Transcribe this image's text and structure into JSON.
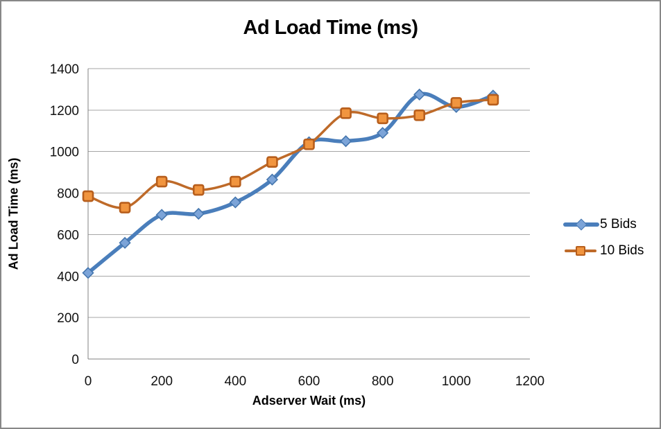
{
  "window": {
    "background": "#ffffff",
    "border_color": "#878787"
  },
  "chart_data": {
    "type": "line",
    "title": "Ad Load Time (ms)",
    "xlabel": "Adserver Wait (ms)",
    "ylabel": "Ad Load Time (ms)",
    "xlim": [
      0,
      1200
    ],
    "ylim": [
      0,
      1400
    ],
    "x_ticks": [
      0,
      200,
      400,
      600,
      800,
      1000,
      1200
    ],
    "y_ticks": [
      0,
      200,
      400,
      600,
      800,
      1000,
      1200,
      1400
    ],
    "grid": "horizontal-only",
    "legend_position": "right",
    "line_style": "smoothed",
    "x": [
      0,
      100,
      200,
      300,
      400,
      500,
      600,
      700,
      800,
      900,
      1000,
      1100
    ],
    "series": [
      {
        "name": "5 Bids",
        "marker": "diamond",
        "line_color": "#4A7EBB",
        "marker_fill": "#7CA4D8",
        "marker_stroke": "#4576AE",
        "line_width": 5.5,
        "values": [
          415,
          560,
          695,
          700,
          755,
          865,
          1045,
          1050,
          1090,
          1275,
          1215,
          1270
        ]
      },
      {
        "name": "10 Bids",
        "marker": "square",
        "line_color": "#BE6A29",
        "marker_fill": "#F1953F",
        "marker_stroke": "#B75E1C",
        "line_width": 3.5,
        "values": [
          785,
          730,
          855,
          815,
          855,
          950,
          1035,
          1185,
          1160,
          1175,
          1235,
          1250
        ]
      }
    ],
    "colors": {
      "gridline": "#A6A6A6",
      "axis": "#808080",
      "text": "#000000"
    }
  }
}
